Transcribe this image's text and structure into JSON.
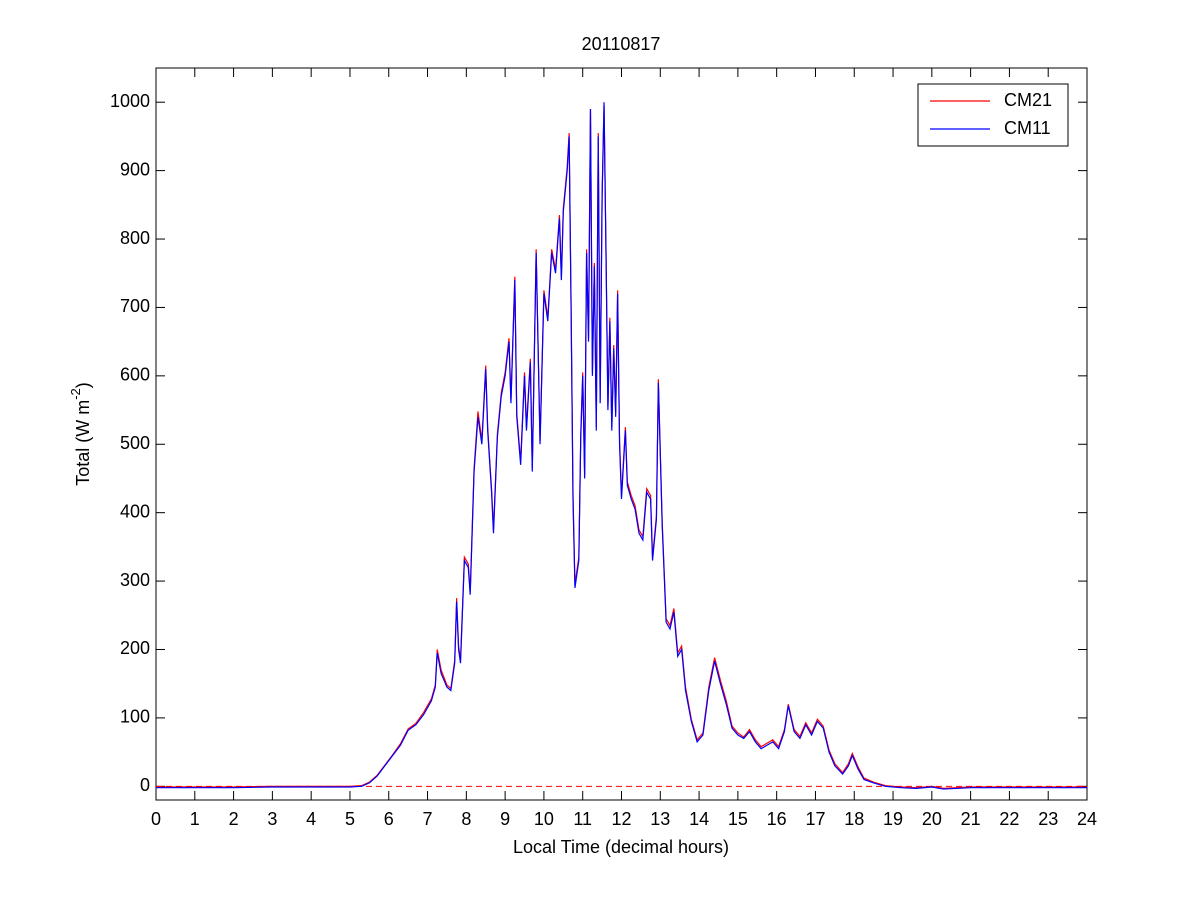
{
  "chart_data": {
    "type": "line",
    "title": "20110817",
    "xlabel": "Local Time (decimal hours)",
    "ylabel": {
      "text": "Total (W m",
      "superscript": "-2",
      "suffix": ")"
    },
    "x": [
      0,
      1,
      2,
      3,
      4,
      5,
      5.3,
      5.5,
      5.7,
      5.9,
      6.1,
      6.3,
      6.5,
      6.7,
      6.9,
      7.1,
      7.2,
      7.25,
      7.35,
      7.5,
      7.6,
      7.7,
      7.75,
      7.8,
      7.85,
      7.95,
      8.05,
      8.1,
      8.2,
      8.3,
      8.4,
      8.5,
      8.55,
      8.65,
      8.7,
      8.8,
      8.9,
      9.0,
      9.1,
      9.15,
      9.25,
      9.3,
      9.4,
      9.5,
      9.55,
      9.65,
      9.7,
      9.8,
      9.9,
      10.0,
      10.1,
      10.2,
      10.3,
      10.4,
      10.45,
      10.5,
      10.6,
      10.65,
      10.7,
      10.75,
      10.8,
      10.9,
      10.95,
      11.0,
      11.05,
      11.1,
      11.15,
      11.2,
      11.25,
      11.3,
      11.35,
      11.4,
      11.45,
      11.5,
      11.55,
      11.6,
      11.65,
      11.7,
      11.75,
      11.8,
      11.85,
      11.9,
      11.95,
      12.0,
      12.1,
      12.15,
      12.25,
      12.35,
      12.45,
      12.55,
      12.65,
      12.75,
      12.8,
      12.9,
      12.95,
      13.05,
      13.15,
      13.25,
      13.35,
      13.45,
      13.55,
      13.65,
      13.8,
      13.95,
      14.1,
      14.25,
      14.4,
      14.55,
      14.7,
      14.85,
      15.0,
      15.15,
      15.3,
      15.45,
      15.6,
      15.75,
      15.9,
      16.05,
      16.2,
      16.3,
      16.45,
      16.6,
      16.75,
      16.9,
      17.05,
      17.2,
      17.35,
      17.5,
      17.7,
      17.85,
      17.95,
      18.1,
      18.25,
      18.5,
      18.8,
      19.2,
      19.6,
      20.0,
      20.3,
      21,
      22,
      23,
      24
    ],
    "series": [
      {
        "name": "CM21",
        "color": "#ff0000",
        "values": [
          -1,
          -1,
          -1,
          0,
          0,
          0,
          1,
          6,
          16,
          31,
          46,
          62,
          84,
          92,
          108,
          128,
          148,
          200,
          170,
          148,
          143,
          184,
          275,
          205,
          185,
          335,
          325,
          285,
          465,
          548,
          505,
          615,
          525,
          435,
          375,
          515,
          575,
          605,
          655,
          565,
          745,
          545,
          475,
          605,
          525,
          625,
          465,
          785,
          505,
          725,
          685,
          785,
          755,
          835,
          745,
          845,
          905,
          955,
          705,
          425,
          295,
          335,
          515,
          605,
          455,
          785,
          655,
          990,
          605,
          765,
          525,
          955,
          565,
          865,
          995,
          785,
          555,
          685,
          525,
          645,
          545,
          725,
          505,
          425,
          525,
          445,
          425,
          410,
          375,
          365,
          435,
          425,
          335,
          395,
          595,
          385,
          245,
          235,
          260,
          195,
          205,
          145,
          98,
          68,
          78,
          145,
          188,
          155,
          125,
          88,
          78,
          72,
          83,
          68,
          58,
          63,
          68,
          58,
          83,
          120,
          83,
          73,
          93,
          78,
          98,
          88,
          53,
          33,
          20,
          33,
          48,
          28,
          12,
          6,
          1,
          -1,
          -2,
          0,
          -3,
          -1,
          -1,
          -1,
          -1
        ]
      },
      {
        "name": "CM11",
        "color": "#0000ff",
        "values": [
          -2,
          -2,
          -2,
          -1,
          -1,
          -1,
          0,
          5,
          15,
          30,
          45,
          60,
          82,
          90,
          105,
          125,
          145,
          195,
          165,
          145,
          140,
          180,
          270,
          200,
          180,
          330,
          320,
          280,
          460,
          540,
          500,
          610,
          520,
          430,
          370,
          510,
          570,
          600,
          650,
          560,
          740,
          540,
          470,
          600,
          520,
          620,
          460,
          780,
          500,
          720,
          680,
          780,
          750,
          830,
          740,
          840,
          900,
          950,
          700,
          420,
          290,
          330,
          510,
          600,
          450,
          780,
          650,
          990,
          600,
          760,
          520,
          950,
          560,
          860,
          1000,
          780,
          550,
          680,
          520,
          640,
          540,
          720,
          500,
          420,
          520,
          440,
          420,
          405,
          370,
          360,
          430,
          420,
          330,
          390,
          590,
          380,
          240,
          230,
          255,
          190,
          200,
          140,
          95,
          65,
          75,
          140,
          183,
          150,
          120,
          85,
          75,
          70,
          80,
          65,
          55,
          60,
          65,
          55,
          80,
          118,
          80,
          70,
          90,
          75,
          95,
          85,
          50,
          30,
          18,
          30,
          45,
          25,
          10,
          5,
          0,
          -2,
          -3,
          -1,
          -4,
          -2,
          -2,
          -2,
          -2
        ]
      }
    ],
    "xlim": [
      0,
      24
    ],
    "xticks": [
      0,
      1,
      2,
      3,
      4,
      5,
      6,
      7,
      8,
      9,
      10,
      11,
      12,
      13,
      14,
      15,
      16,
      17,
      18,
      19,
      20,
      21,
      22,
      23,
      24
    ],
    "ylim": [
      -20,
      1050
    ],
    "yticks": [
      0,
      100,
      200,
      300,
      400,
      500,
      600,
      700,
      800,
      900,
      1000
    ],
    "reference_line": {
      "y": 0,
      "color": "#ff0000",
      "dashed": true
    },
    "legend": "top-right"
  }
}
